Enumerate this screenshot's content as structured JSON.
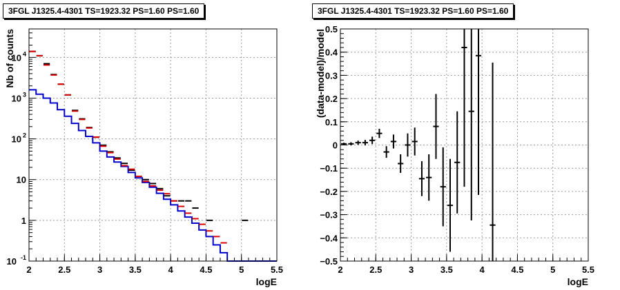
{
  "panels": {
    "left_title": "3FGL J1325.4-4301 TS=1923.32 PS=1.60 PS=1.60",
    "right_title": "3FGL J1325.4-4301 TS=1923.32 PS=1.60 PS=1.60"
  },
  "colors": {
    "data": "#000000",
    "model_points": "#dd0000",
    "model_hist": "#0000cc",
    "grid": "#999999"
  },
  "chart_data": [
    {
      "type": "line",
      "title": "3FGL J1325.4-4301 TS=1923.32 PS=1.60 PS=1.60",
      "xlabel": "logE",
      "ylabel": "Nb of counts",
      "log_y": true,
      "grid": true,
      "xlim": [
        2,
        5.5
      ],
      "ylim": [
        0.1,
        50000
      ],
      "x_ticks": [
        "2",
        "2.5",
        "3",
        "3.5",
        "4",
        "4.5",
        "5",
        "5.5"
      ],
      "y_ticks": [
        {
          "v": 0.1,
          "l": "10",
          "e": "-1"
        },
        {
          "v": 1,
          "l": "1",
          "e": ""
        },
        {
          "v": 10,
          "l": "10",
          "e": ""
        },
        {
          "v": 100,
          "l": "10",
          "e": "2"
        },
        {
          "v": 1000,
          "l": "10",
          "e": "3"
        },
        {
          "v": 10000,
          "l": "10",
          "e": "4"
        }
      ],
      "bin_width": 0.1,
      "series": [
        {
          "name": "",
          "style": "black-errorbars",
          "x": [
            2.05,
            2.15,
            2.25,
            2.35,
            2.45,
            2.55,
            2.65,
            2.75,
            2.85,
            2.95,
            3.05,
            3.15,
            3.25,
            3.35,
            3.45,
            3.55,
            3.65,
            3.75,
            3.85,
            3.95,
            4.05,
            4.15,
            4.25,
            4.35,
            4.55,
            5.05
          ],
          "y": [
            14000,
            11000,
            7000,
            3800,
            2200,
            1200,
            500,
            310,
            190,
            110,
            70,
            48,
            34,
            25,
            17,
            12,
            10,
            8,
            6,
            4,
            3,
            3,
            3,
            2,
            1,
            1
          ],
          "err_low": [
            0,
            0,
            0,
            0,
            0,
            0,
            0,
            0,
            0,
            0,
            0,
            0,
            0,
            0,
            0,
            0,
            0,
            0,
            0,
            0,
            0,
            0,
            0,
            0,
            0,
            0
          ],
          "err_high": [
            0,
            0,
            0,
            0,
            0,
            0,
            0,
            0,
            0,
            0,
            0,
            0,
            0,
            0,
            0,
            0,
            0,
            0,
            0,
            0,
            0,
            0,
            0,
            0,
            0,
            0
          ]
        },
        {
          "name": "",
          "style": "red-errorbars",
          "x": [
            2.05,
            2.15,
            2.25,
            2.35,
            2.45,
            2.55,
            2.65,
            2.75,
            2.85,
            2.95,
            3.05,
            3.15,
            3.25,
            3.35,
            3.45,
            3.55,
            3.65,
            3.75,
            3.85,
            3.95,
            4.05,
            4.15,
            4.25,
            4.35,
            4.45,
            4.55,
            4.65,
            4.75
          ],
          "y": [
            14000,
            11000,
            6500,
            3700,
            2200,
            1200,
            480,
            300,
            185,
            110,
            66,
            46,
            32,
            22,
            18,
            12,
            9,
            7,
            5.5,
            4.5,
            3,
            2.2,
            1.5,
            1.1,
            0.8,
            0.55,
            0.4,
            0.28
          ],
          "err_low": [
            0,
            0,
            0,
            0,
            0,
            0,
            0,
            0,
            0,
            0,
            0,
            0,
            0,
            0,
            0,
            0,
            0,
            0,
            0,
            0,
            0,
            0,
            0,
            0,
            0,
            0,
            0,
            0
          ],
          "err_high": [
            0,
            0,
            0,
            0,
            0,
            0,
            0,
            0,
            0,
            0,
            0,
            0,
            0,
            0,
            0,
            0,
            0,
            0,
            0,
            0,
            0,
            0,
            0,
            0,
            0,
            0,
            0,
            0
          ]
        },
        {
          "name": "",
          "style": "blue-step",
          "edges": [
            2.0,
            2.1,
            2.2,
            2.3,
            2.4,
            2.5,
            2.6,
            2.7,
            2.8,
            2.9,
            3.0,
            3.1,
            3.2,
            3.3,
            3.4,
            3.5,
            3.6,
            3.7,
            3.8,
            3.9,
            4.0,
            4.1,
            4.2,
            4.3,
            4.4,
            4.5,
            4.6,
            4.7,
            4.8,
            4.9,
            5.0,
            5.1,
            5.2,
            5.3,
            5.4,
            5.5
          ],
          "values": [
            1600,
            1250,
            1000,
            760,
            520,
            360,
            240,
            160,
            115,
            80,
            50,
            36,
            27,
            21,
            15,
            11,
            8.5,
            6.5,
            4.6,
            3.3,
            2.4,
            1.7,
            1.2,
            0.85,
            0.58,
            0.4,
            0.25,
            0.16,
            0.1,
            0.1,
            0.1,
            0.1,
            0.1,
            0.1,
            0.1
          ]
        }
      ]
    },
    {
      "type": "scatter",
      "title": "3FGL J1325.4-4301 TS=1923.32 PS=1.60 PS=1.60",
      "xlabel": "logE",
      "ylabel": "(data-model)/model",
      "grid": true,
      "xlim": [
        2,
        5.5
      ],
      "ylim": [
        -0.5,
        0.5
      ],
      "x_ticks": [
        "2",
        "2.5",
        "3",
        "3.5",
        "4",
        "4.5",
        "5",
        "5.5"
      ],
      "y_ticks": [
        "-0.5",
        "-0.4",
        "-0.3",
        "-0.2",
        "-0.1",
        "0",
        "0.1",
        "0.2",
        "0.3",
        "0.4",
        "0.5"
      ],
      "bin_width": 0.1,
      "series": [
        {
          "name": "",
          "x": [
            2.05,
            2.15,
            2.25,
            2.35,
            2.45,
            2.55,
            2.65,
            2.75,
            2.85,
            2.95,
            3.05,
            3.15,
            3.25,
            3.35,
            3.45,
            3.55,
            3.65,
            3.75,
            3.85,
            3.95,
            4.15
          ],
          "y": [
            0.005,
            0.005,
            0.01,
            0.01,
            0.02,
            0.05,
            -0.03,
            0.015,
            -0.08,
            0.0,
            0.015,
            -0.145,
            -0.14,
            0.08,
            -0.18,
            -0.26,
            -0.075,
            0.42,
            0.145,
            0.385,
            -0.345
          ],
          "err": [
            0.005,
            0.007,
            0.009,
            0.012,
            0.016,
            0.02,
            0.025,
            0.03,
            0.04,
            0.05,
            0.06,
            0.075,
            0.1,
            0.14,
            0.17,
            0.2,
            0.22,
            0.6,
            0.47,
            0.6,
            0.7
          ]
        }
      ]
    }
  ]
}
